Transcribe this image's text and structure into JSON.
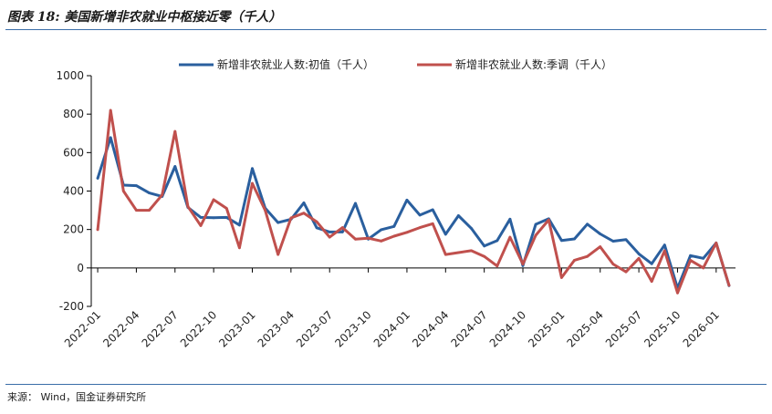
{
  "figure": {
    "title": "图表 18: 美国新增非农就业中枢接近零（千人）",
    "source": "来源： Wind，国金证券研究所"
  },
  "colors": {
    "series_initial": "#2a5f9e",
    "series_sa": "#c0504d",
    "rule": "#3a6ea8",
    "axis": "#000000"
  },
  "chart_data": {
    "type": "line",
    "ylim": [
      -200,
      1000
    ],
    "yticks": [
      "1000",
      "800",
      "600",
      "400",
      "200",
      "0",
      "-200"
    ],
    "xtick_labels": [
      "2022-01",
      "2022-04",
      "2022-07",
      "2022-10",
      "2023-01",
      "2023-04",
      "2023-07",
      "2023-10",
      "2024-01",
      "2024-04",
      "2024-07",
      "2024-10",
      "2025-01",
      "2025-04",
      "2025-07",
      "2025-10",
      "2026-01"
    ],
    "grid": false,
    "legend_position": "top",
    "series": [
      {
        "name": "新增非农就业人数:初值（千人）",
        "values": [
          467,
          678,
          431,
          428,
          390,
          372,
          528,
          315,
          263,
          261,
          263,
          223,
          517,
          311,
          236,
          253,
          339,
          209,
          187,
          187,
          336,
          150,
          199,
          216,
          353,
          275,
          303,
          175,
          272,
          206,
          114,
          142,
          254,
          12,
          227,
          256,
          143,
          151,
          228,
          177,
          139,
          147,
          73,
          22,
          119,
          -105,
          64,
          50,
          130,
          -92
        ]
      },
      {
        "name": "新增非农就业人数:季调（千人）",
        "values": [
          200,
          820,
          400,
          300,
          300,
          380,
          710,
          320,
          220,
          355,
          310,
          105,
          440,
          300,
          70,
          260,
          285,
          240,
          160,
          210,
          150,
          155,
          140,
          165,
          185,
          210,
          230,
          70,
          80,
          90,
          60,
          10,
          160,
          20,
          170,
          250,
          -50,
          40,
          60,
          110,
          20,
          -20,
          50,
          -70,
          90,
          -130,
          40,
          0,
          130,
          -90
        ]
      }
    ]
  }
}
